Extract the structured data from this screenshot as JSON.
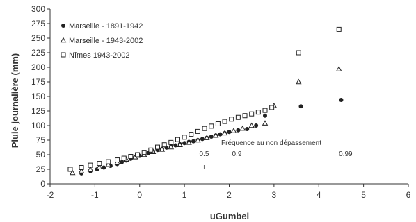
{
  "chart_data": {
    "type": "scatter",
    "xlabel": "uGumbel",
    "ylabel": "Pluie journalière (mm)",
    "xlim": [
      -2,
      6
    ],
    "ylim": [
      0,
      300
    ],
    "x_ticks": [
      "-2",
      "-1",
      "0",
      "1",
      "2",
      "3",
      "4",
      "5",
      "6"
    ],
    "y_ticks": [
      "0",
      "25",
      "50",
      "75",
      "100",
      "125",
      "150",
      "175",
      "200",
      "225",
      "250",
      "275",
      "300"
    ],
    "grid": false,
    "legend_position": "top-left",
    "annotations": {
      "title": "Fréquence au non dépassement",
      "labels": [
        {
          "text": "0.5",
          "x": 1.44
        },
        {
          "text": "0.9",
          "x": 2.17
        },
        {
          "text": "0.99",
          "x": 4.6
        }
      ]
    },
    "series": [
      {
        "name": "Marseille - 1891-1942",
        "marker": "filled-circle",
        "color": "#222222",
        "points": [
          [
            -1.3,
            18
          ],
          [
            -1.1,
            22
          ],
          [
            -0.95,
            25
          ],
          [
            -0.8,
            28
          ],
          [
            -0.65,
            31
          ],
          [
            -0.5,
            34
          ],
          [
            -0.4,
            37
          ],
          [
            -0.3,
            40
          ],
          [
            -0.2,
            43
          ],
          [
            -0.1,
            46
          ],
          [
            0.0,
            48
          ],
          [
            0.1,
            51
          ],
          [
            0.2,
            53
          ],
          [
            0.3,
            56
          ],
          [
            0.4,
            58
          ],
          [
            0.5,
            60
          ],
          [
            0.6,
            62
          ],
          [
            0.7,
            64
          ],
          [
            0.8,
            66
          ],
          [
            0.9,
            68
          ],
          [
            1.0,
            70
          ],
          [
            1.1,
            72
          ],
          [
            1.2,
            73
          ],
          [
            1.3,
            75
          ],
          [
            1.4,
            77
          ],
          [
            1.5,
            79
          ],
          [
            1.6,
            81
          ],
          [
            1.7,
            83
          ],
          [
            1.8,
            85
          ],
          [
            1.9,
            87
          ],
          [
            2.0,
            89
          ],
          [
            2.2,
            92
          ],
          [
            2.4,
            94
          ],
          [
            2.6,
            100
          ],
          [
            2.8,
            117
          ],
          [
            3.6,
            133
          ],
          [
            4.5,
            144
          ]
        ]
      },
      {
        "name": "Marseille - 1943-2002",
        "marker": "open-triangle",
        "color": "#222222",
        "points": [
          [
            -1.5,
            19
          ],
          [
            -1.3,
            22
          ],
          [
            -1.1,
            25
          ],
          [
            -0.9,
            29
          ],
          [
            -0.7,
            33
          ],
          [
            -0.5,
            37
          ],
          [
            -0.3,
            42
          ],
          [
            -0.1,
            46
          ],
          [
            0.1,
            50
          ],
          [
            0.3,
            55
          ],
          [
            0.5,
            59
          ],
          [
            0.7,
            63
          ],
          [
            0.9,
            67
          ],
          [
            1.1,
            71
          ],
          [
            1.3,
            75
          ],
          [
            1.5,
            79
          ],
          [
            1.7,
            83
          ],
          [
            1.9,
            87
          ],
          [
            2.1,
            91
          ],
          [
            2.3,
            95
          ],
          [
            2.5,
            100
          ],
          [
            2.8,
            104
          ],
          [
            3.0,
            134
          ],
          [
            3.55,
            175
          ],
          [
            4.45,
            197
          ]
        ]
      },
      {
        "name": "Nîmes 1943-2002",
        "marker": "open-square",
        "color": "#222222",
        "points": [
          [
            -1.55,
            25
          ],
          [
            -1.3,
            28
          ],
          [
            -1.1,
            32
          ],
          [
            -0.9,
            35
          ],
          [
            -0.7,
            38
          ],
          [
            -0.5,
            41
          ],
          [
            -0.35,
            44
          ],
          [
            -0.2,
            47
          ],
          [
            -0.05,
            50
          ],
          [
            0.1,
            54
          ],
          [
            0.25,
            58
          ],
          [
            0.4,
            63
          ],
          [
            0.55,
            67
          ],
          [
            0.7,
            71
          ],
          [
            0.85,
            76
          ],
          [
            1.0,
            80
          ],
          [
            1.15,
            85
          ],
          [
            1.3,
            90
          ],
          [
            1.45,
            95
          ],
          [
            1.6,
            99
          ],
          [
            1.75,
            103
          ],
          [
            1.9,
            107
          ],
          [
            2.05,
            111
          ],
          [
            2.2,
            114
          ],
          [
            2.35,
            117
          ],
          [
            2.5,
            120
          ],
          [
            2.65,
            123
          ],
          [
            2.8,
            126
          ],
          [
            2.95,
            131
          ],
          [
            3.55,
            225
          ],
          [
            4.45,
            265
          ]
        ]
      }
    ]
  }
}
